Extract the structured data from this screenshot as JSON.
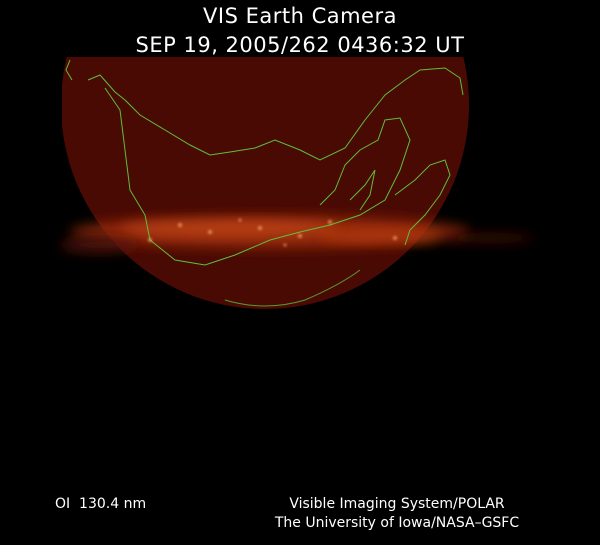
{
  "header": {
    "title": "VIS Earth Camera",
    "timestamp": "SEP 19, 2005/262 0436:32 UT"
  },
  "footer": {
    "filter": "OI  130.4 nm",
    "instrument": "Visible Imaging System/POLAR",
    "credit": "The University of Iowa/NASA–GSFC"
  }
}
